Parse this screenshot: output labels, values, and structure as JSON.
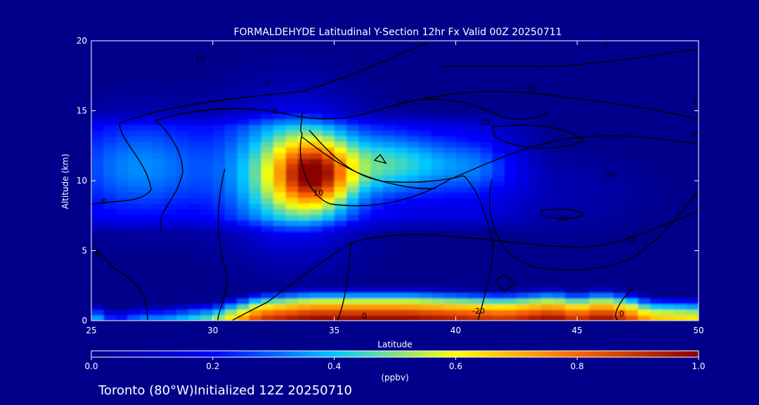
{
  "chart_data": {
    "type": "heatmap",
    "title": "FORMALDEHYDE Latitudinal Y-Section 12hr  Fx Valid 00Z 20250711",
    "xlabel": "Latitude",
    "ylabel": "Altitude (km)",
    "xlim": [
      25,
      50
    ],
    "ylim": [
      0,
      20
    ],
    "x_ticks": [
      "25",
      "30",
      "35",
      "40",
      "45",
      "50"
    ],
    "y_ticks": [
      "0",
      "5",
      "10",
      "15",
      "20"
    ],
    "colorbar": {
      "label": "(ppbv)",
      "range": [
        0.0,
        1.0
      ],
      "ticks": [
        "0.0",
        "0.2",
        "0.4",
        "0.6",
        "0.8",
        "1.0"
      ],
      "colors": [
        "#00008b",
        "#0000ff",
        "#00c8ff",
        "#ffff00",
        "#ff6400",
        "#8b0000"
      ]
    },
    "contour_labels": [
      "10",
      "0",
      "0",
      "10",
      "20",
      "20",
      "10",
      "20",
      "0",
      "10",
      "0",
      "-20",
      "0",
      "0",
      "0",
      "10"
    ],
    "field_blobs": [
      {
        "lat": 33.3,
        "alt": 10.5,
        "wlat": 2.6,
        "walt": 4.5,
        "value": 0.45
      },
      {
        "lat": 34.2,
        "alt": 10.5,
        "wlat": 1.4,
        "walt": 2.2,
        "value": 0.5
      },
      {
        "lat": 37.5,
        "alt": 11.2,
        "wlat": 2.5,
        "walt": 2.2,
        "value": 0.3
      },
      {
        "lat": 27.0,
        "alt": 11.0,
        "wlat": 3.0,
        "walt": 3.5,
        "value": 0.22
      },
      {
        "lat": 41.0,
        "alt": 11.0,
        "wlat": 2.0,
        "walt": 2.0,
        "value": 0.15
      },
      {
        "lat": 44.5,
        "alt": 9.0,
        "wlat": 3.0,
        "walt": 2.5,
        "value": 0.06
      }
    ],
    "surface_values": [
      {
        "lat": 25,
        "value": 0.45
      },
      {
        "lat": 26,
        "value": 0.2
      },
      {
        "lat": 27,
        "value": 0.35
      },
      {
        "lat": 28,
        "value": 0.35
      },
      {
        "lat": 30,
        "value": 0.5
      },
      {
        "lat": 32,
        "value": 0.9
      },
      {
        "lat": 34,
        "value": 1.0
      },
      {
        "lat": 36,
        "value": 1.0
      },
      {
        "lat": 38,
        "value": 1.0
      },
      {
        "lat": 40,
        "value": 0.95
      },
      {
        "lat": 42,
        "value": 0.9
      },
      {
        "lat": 44,
        "value": 1.0
      },
      {
        "lat": 45,
        "value": 0.9
      },
      {
        "lat": 46,
        "value": 1.0
      },
      {
        "lat": 47,
        "value": 0.9
      },
      {
        "lat": 48,
        "value": 0.7
      },
      {
        "lat": 50,
        "value": 0.65
      }
    ]
  },
  "footer": {
    "location": "Toronto (80°W)Initialized 12Z 20250710"
  }
}
